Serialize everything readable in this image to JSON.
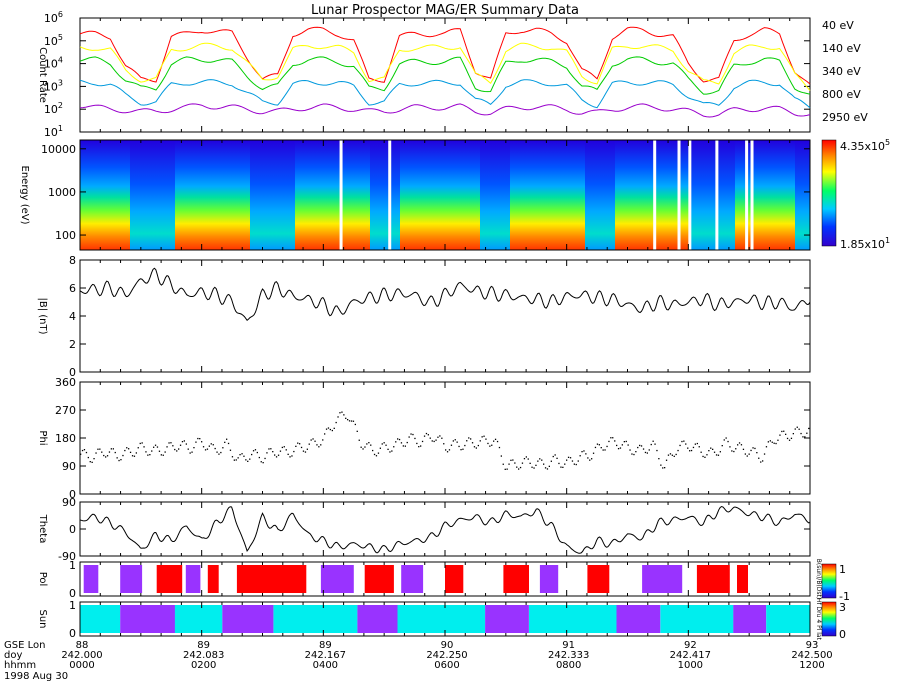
{
  "title": "Lunar Prospector MAG/ER Summary Data",
  "chart_data": [
    {
      "id": "count_rate",
      "type": "line",
      "ylabel": "Count Rate",
      "yscale": "log",
      "ylim": [
        10,
        1000000
      ],
      "ytick_labels": [
        {
          "base": "10",
          "exp": "1"
        },
        {
          "base": "10",
          "exp": "2"
        },
        {
          "base": "10",
          "exp": "3"
        },
        {
          "base": "10",
          "exp": "4"
        },
        {
          "base": "10",
          "exp": "5"
        },
        {
          "base": "10",
          "exp": "6"
        }
      ],
      "x": [
        0,
        0.25,
        0.5,
        0.75,
        1,
        1.25,
        1.5,
        1.75,
        2,
        2.25,
        2.5,
        2.75,
        3,
        3.25,
        3.5,
        3.75,
        4,
        4.25,
        4.5,
        4.75,
        5,
        5.25,
        5.5,
        5.75,
        6,
        6.25,
        6.5,
        6.75,
        7,
        7.25,
        7.5,
        7.75,
        8,
        8.25,
        8.5,
        8.75,
        9,
        9.25,
        9.5,
        9.75,
        10,
        10.25,
        10.5,
        10.75,
        11,
        11.25,
        11.5,
        11.75,
        12
      ],
      "series": [
        {
          "name": "40 eV",
          "color": "#ff0000",
          "values": [
            200000,
            200000,
            150000,
            8000,
            2000,
            2000,
            150000,
            200000,
            300000,
            250000,
            220000,
            20000,
            2000,
            3000,
            200000,
            300000,
            300000,
            200000,
            100000,
            2000,
            2000,
            150000,
            200000,
            200000,
            200000,
            300000,
            5000,
            2000,
            200000,
            300000,
            300000,
            200000,
            100000,
            5000,
            2000,
            150000,
            300000,
            300000,
            200000,
            150000,
            10000,
            2000,
            2000,
            100000,
            200000,
            300000,
            200000,
            5000,
            1000
          ]
        },
        {
          "name": "140 eV",
          "color": "#ffff00",
          "values": [
            50000,
            50000,
            40000,
            5000,
            2000,
            2000,
            40000,
            50000,
            60000,
            60000,
            50000,
            10000,
            2000,
            3000,
            40000,
            60000,
            60000,
            50000,
            30000,
            2000,
            2000,
            40000,
            50000,
            50000,
            50000,
            60000,
            3000,
            1500,
            40000,
            60000,
            60000,
            50000,
            30000,
            3000,
            1500,
            40000,
            60000,
            60000,
            50000,
            40000,
            5000,
            1500,
            1500,
            30000,
            50000,
            60000,
            50000,
            3000,
            800
          ]
        },
        {
          "name": "340 eV",
          "color": "#00cc00",
          "values": [
            15000,
            15000,
            10000,
            2000,
            800,
            800,
            10000,
            15000,
            15000,
            15000,
            12000,
            3000,
            800,
            1000,
            10000,
            15000,
            15000,
            12000,
            8000,
            800,
            800,
            10000,
            12000,
            12000,
            12000,
            15000,
            1000,
            600,
            10000,
            15000,
            15000,
            12000,
            8000,
            1000,
            600,
            10000,
            15000,
            15000,
            12000,
            10000,
            2000,
            600,
            600,
            8000,
            12000,
            15000,
            12000,
            1000,
            400
          ]
        },
        {
          "name": "800 eV",
          "color": "#0099dd",
          "values": [
            1500,
            1500,
            1200,
            400,
            200,
            200,
            1200,
            1500,
            1500,
            1500,
            1400,
            500,
            200,
            200,
            1200,
            1500,
            1500,
            1400,
            1000,
            200,
            200,
            1200,
            1400,
            1400,
            1400,
            1500,
            250,
            150,
            1200,
            1500,
            1500,
            1400,
            1000,
            250,
            150,
            1200,
            1500,
            1500,
            1400,
            1200,
            400,
            150,
            150,
            1000,
            1400,
            1500,
            1400,
            250,
            120
          ]
        },
        {
          "name": "2950 eV",
          "color": "#9900cc",
          "values": [
            150,
            120,
            100,
            90,
            80,
            80,
            100,
            120,
            150,
            130,
            120,
            100,
            80,
            80,
            100,
            120,
            130,
            120,
            100,
            80,
            80,
            100,
            120,
            120,
            120,
            130,
            80,
            70,
            100,
            120,
            130,
            120,
            100,
            70,
            70,
            100,
            120,
            130,
            120,
            100,
            80,
            60,
            60,
            90,
            100,
            110,
            100,
            70,
            60
          ]
        }
      ]
    },
    {
      "id": "energy_spectrogram",
      "type": "heatmap",
      "ylabel": "Energy (eV)",
      "yscale": "log",
      "ylim": [
        45,
        16000
      ],
      "ytick_labels": [
        "10000",
        "1000",
        "100"
      ],
      "colorbar": {
        "max": {
          "mant": "4.35x10",
          "exp": "5"
        },
        "min": {
          "mant": "1.85x10",
          "exp": "1"
        }
      },
      "gaps_x": [
        4.8,
        5.7,
        10.6,
        11.05,
        11.25,
        11.75,
        12.3,
        12.4
      ]
    },
    {
      "id": "B_magnitude",
      "type": "line",
      "ylabel": "|B| (nT)",
      "ylim": [
        0,
        8
      ],
      "yticks": [
        0,
        2,
        4,
        6,
        8
      ],
      "x": [
        0,
        0.25,
        0.5,
        0.75,
        1,
        1.25,
        1.5,
        1.75,
        2,
        2.25,
        2.5,
        2.75,
        3,
        3.25,
        3.5,
        3.75,
        4,
        4.25,
        4.5,
        4.75,
        5,
        5.25,
        5.5,
        5.75,
        6,
        6.25,
        6.5,
        6.75,
        7,
        7.25,
        7.5,
        7.75,
        8,
        8.25,
        8.5,
        8.75,
        9,
        9.25,
        9.5,
        9.75,
        10,
        10.25,
        10.5,
        10.75,
        11,
        11.25,
        11.5,
        11.75,
        12
      ],
      "values": [
        5.8,
        5.9,
        6.0,
        5.5,
        6.5,
        7.0,
        6.2,
        5.5,
        5.7,
        5.5,
        5.0,
        3.5,
        5.5,
        6.0,
        5.4,
        5.2,
        4.8,
        4.2,
        5.0,
        5.3,
        5.5,
        5.6,
        5.5,
        4.9,
        5.5,
        6.2,
        5.8,
        5.6,
        5.5,
        5.3,
        5.2,
        5.0,
        5.4,
        5.5,
        5.3,
        5.2,
        4.8,
        4.5,
        5.0,
        4.8,
        5.0,
        5.2,
        4.8,
        5.0,
        5.2,
        4.9,
        5.0,
        4.5,
        5.3
      ]
    },
    {
      "id": "phi",
      "type": "scatter",
      "ylabel": "Phi",
      "ylim": [
        0,
        360
      ],
      "yticks": [
        0,
        90,
        180,
        270,
        360
      ],
      "x": [
        0,
        0.2,
        0.4,
        0.6,
        0.8,
        1.0,
        1.2,
        1.4,
        1.6,
        1.8,
        2.0,
        2.2,
        2.4,
        2.6,
        2.8,
        3.0,
        3.2,
        3.4,
        3.6,
        3.8,
        4.0,
        4.2,
        4.4,
        4.6,
        4.8,
        5.0,
        5.2,
        5.4,
        5.6,
        5.8,
        6.0,
        6.2,
        6.4,
        6.6,
        6.8,
        7.0,
        7.2,
        7.4,
        7.6,
        7.8,
        8.0,
        8.2,
        8.4,
        8.6,
        8.8,
        9.0,
        9.2,
        9.4,
        9.6,
        9.8,
        10.0,
        10.2,
        10.4,
        10.6,
        10.8,
        11.0,
        11.2,
        11.4,
        11.6,
        11.8,
        12.0
      ],
      "values": [
        130,
        120,
        140,
        125,
        135,
        150,
        140,
        145,
        160,
        150,
        170,
        140,
        160,
        110,
        130,
        120,
        140,
        135,
        150,
        160,
        180,
        240,
        260,
        170,
        140,
        150,
        160,
        180,
        170,
        190,
        155,
        160,
        165,
        170,
        175,
        90,
        100,
        105,
        95,
        110,
        100,
        120,
        130,
        160,
        170,
        150,
        140,
        160,
        90,
        150,
        160,
        140,
        130,
        165,
        150,
        140,
        120,
        180,
        190,
        200,
        205
      ]
    },
    {
      "id": "theta",
      "type": "line",
      "ylabel": "Theta",
      "ylim": [
        -90,
        90
      ],
      "yticks": [
        -90,
        0,
        90
      ],
      "x": [
        0,
        0.25,
        0.5,
        0.75,
        1,
        1.25,
        1.5,
        1.75,
        2,
        2.25,
        2.5,
        2.75,
        3,
        3.25,
        3.5,
        3.75,
        4,
        4.25,
        4.5,
        4.75,
        5,
        5.25,
        5.5,
        5.75,
        6,
        6.25,
        6.5,
        6.75,
        7,
        7.25,
        7.5,
        7.75,
        8,
        8.25,
        8.5,
        8.75,
        9,
        9.25,
        9.5,
        9.75,
        10,
        10.25,
        10.5,
        10.75,
        11,
        11.25,
        11.5,
        11.75,
        12
      ],
      "values": [
        30,
        40,
        20,
        -10,
        -70,
        -20,
        -40,
        10,
        -40,
        20,
        70,
        -80,
        40,
        -10,
        50,
        -20,
        -40,
        -60,
        -50,
        -60,
        -70,
        -50,
        -40,
        -30,
        10,
        30,
        40,
        20,
        50,
        40,
        60,
        10,
        -60,
        -80,
        -40,
        -50,
        -20,
        -30,
        20,
        30,
        40,
        20,
        60,
        70,
        50,
        40,
        20,
        50,
        30
      ]
    },
    {
      "id": "pol",
      "type": "table",
      "ylabel": "Pol",
      "yticks": [
        0,
        1
      ],
      "colorbar_labels": [
        "1",
        "-1"
      ],
      "rotated_label": "B(sun)/B(Dst)",
      "states": [
        {
          "x0": 0.1,
          "x1": 0.5,
          "value": -1
        },
        {
          "x0": 1.1,
          "x1": 1.7,
          "value": -1
        },
        {
          "x0": 2.1,
          "x1": 2.8,
          "value": 1
        },
        {
          "x0": 2.9,
          "x1": 3.3,
          "value": -1
        },
        {
          "x0": 3.5,
          "x1": 3.8,
          "value": 1
        },
        {
          "x0": 4.3,
          "x1": 6.2,
          "value": 1
        },
        {
          "x0": 6.6,
          "x1": 7.5,
          "value": -1
        },
        {
          "x0": 7.8,
          "x1": 8.6,
          "value": 1
        },
        {
          "x0": 8.8,
          "x1": 9.4,
          "value": -1
        },
        {
          "x0": 10.0,
          "x1": 10.5,
          "value": 1
        },
        {
          "x0": 11.6,
          "x1": 12.3,
          "value": 1
        },
        {
          "x0": 12.6,
          "x1": 13.1,
          "value": -1
        },
        {
          "x0": 13.9,
          "x1": 14.5,
          "value": 1
        },
        {
          "x0": 15.4,
          "x1": 16.5,
          "value": -1
        },
        {
          "x0": 16.9,
          "x1": 17.8,
          "value": 1
        },
        {
          "x0": 18.0,
          "x1": 18.3,
          "value": 1
        }
      ]
    },
    {
      "id": "sun",
      "type": "table",
      "ylabel": "Sun",
      "yticks": [
        0,
        1
      ],
      "colorbar_labels": [
        "3",
        "0"
      ],
      "rotated_label": "Hf Dru 4 Pl lat",
      "states": [
        {
          "x0": 0.0,
          "x1": 1.1,
          "value": 3
        },
        {
          "x0": 1.1,
          "x1": 2.6,
          "value": 0
        },
        {
          "x0": 2.6,
          "x1": 3.9,
          "value": 3
        },
        {
          "x0": 3.9,
          "x1": 5.3,
          "value": 0
        },
        {
          "x0": 5.3,
          "x1": 7.6,
          "value": 3
        },
        {
          "x0": 7.6,
          "x1": 8.7,
          "value": 0
        },
        {
          "x0": 8.7,
          "x1": 11.1,
          "value": 3
        },
        {
          "x0": 11.1,
          "x1": 12.3,
          "value": 0
        },
        {
          "x0": 12.3,
          "x1": 14.7,
          "value": 3
        },
        {
          "x0": 14.7,
          "x1": 15.9,
          "value": 0
        },
        {
          "x0": 15.9,
          "x1": 17.9,
          "value": 3
        },
        {
          "x0": 17.9,
          "x1": 18.8,
          "value": 0
        },
        {
          "x0": 18.8,
          "x1": 20.0,
          "value": 3
        }
      ]
    }
  ],
  "legend": [
    {
      "label": "40 eV",
      "color": "#ff0000"
    },
    {
      "label": "140 eV",
      "color": "#ffff00"
    },
    {
      "label": "340 eV",
      "color": "#00cc00"
    },
    {
      "label": "800 eV",
      "color": "#0099dd"
    },
    {
      "label": "2950 eV",
      "color": "#9900cc"
    }
  ],
  "xaxis": {
    "row_labels": [
      "GSE Lon",
      "doy",
      "hhmm"
    ],
    "ticks": [
      {
        "lon": "88",
        "doy": "242.000",
        "hhmm": "0000"
      },
      {
        "lon": "89",
        "doy": "242.083",
        "hhmm": "0200"
      },
      {
        "lon": "89",
        "doy": "242.167",
        "hhmm": "0400"
      },
      {
        "lon": "90",
        "doy": "242.250",
        "hhmm": "0600"
      },
      {
        "lon": "91",
        "doy": "242.333",
        "hhmm": "0800"
      },
      {
        "lon": "92",
        "doy": "242.417",
        "hhmm": "1000"
      },
      {
        "lon": "93",
        "doy": "242.500",
        "hhmm": "1200"
      }
    ],
    "date": "1998 Aug 30"
  }
}
